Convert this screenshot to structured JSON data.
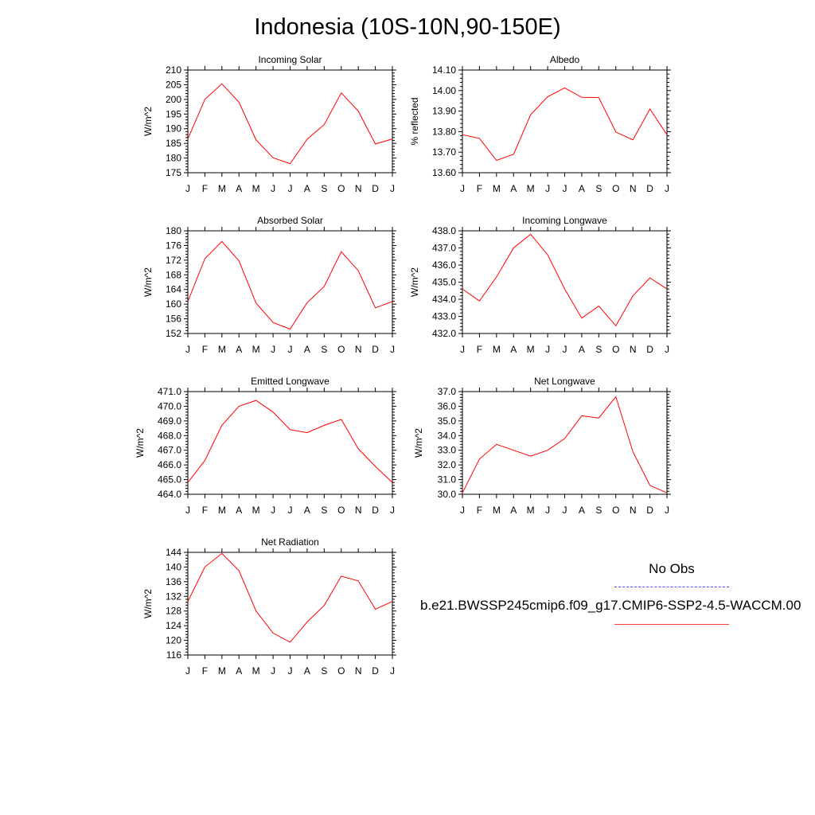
{
  "title": "Indonesia (10S-10N,90-150E)",
  "colors": {
    "series": "#ff0000",
    "obs": "#4a4aff",
    "axis": "#000000"
  },
  "months": [
    "J",
    "F",
    "M",
    "A",
    "M",
    "J",
    "J",
    "A",
    "S",
    "O",
    "N",
    "D",
    "J"
  ],
  "legend": {
    "obs_label": "No Obs",
    "case_label": "b.e21.BWSSP245cmip6.f09_g17.CMIP6-SSP2-4.5-WACCM.00"
  },
  "chart_data": [
    {
      "type": "line",
      "title": "Incoming Solar",
      "ylabel": "W/m^2",
      "ylim": [
        175,
        210
      ],
      "yticks": [
        175,
        180,
        185,
        190,
        195,
        200,
        205,
        210
      ],
      "ytick_labels": [
        "175",
        "180",
        "185",
        "190",
        "195",
        "200",
        "205",
        "210"
      ],
      "series": [
        {
          "name": "model",
          "values": [
            186.5,
            200,
            205.3,
            199,
            186.2,
            180.1,
            178.1,
            186.4,
            191.4,
            202.2,
            196,
            184.8,
            186.5
          ]
        }
      ]
    },
    {
      "type": "line",
      "title": "Albedo",
      "ylabel": "% reflected",
      "ylim": [
        13.6,
        14.1
      ],
      "yticks": [
        13.6,
        13.7,
        13.8,
        13.9,
        14.0,
        14.1
      ],
      "ytick_labels": [
        "13.60",
        "13.70",
        "13.80",
        "13.90",
        "14.00",
        "14.10"
      ],
      "series": [
        {
          "name": "model",
          "values": [
            13.785,
            13.767,
            13.66,
            13.69,
            13.882,
            13.97,
            14.013,
            13.967,
            13.966,
            13.798,
            13.76,
            13.91,
            13.785
          ]
        }
      ]
    },
    {
      "type": "line",
      "title": "Absorbed Solar",
      "ylabel": "W/m^2",
      "ylim": [
        152,
        180
      ],
      "yticks": [
        152,
        156,
        160,
        164,
        168,
        172,
        176,
        180
      ],
      "ytick_labels": [
        "152",
        "156",
        "160",
        "164",
        "168",
        "172",
        "176",
        "180"
      ],
      "series": [
        {
          "name": "model",
          "values": [
            160.7,
            172.4,
            177.1,
            171.8,
            160.3,
            155,
            153.2,
            160.4,
            164.8,
            174.3,
            169.1,
            159,
            160.7
          ]
        }
      ]
    },
    {
      "type": "line",
      "title": "Incoming Longwave",
      "ylabel": "W/m^2",
      "ylim": [
        432,
        438
      ],
      "yticks": [
        432,
        433,
        434,
        435,
        436,
        437,
        438
      ],
      "ytick_labels": [
        "432.0",
        "433.0",
        "434.0",
        "435.0",
        "436.0",
        "437.0",
        "438.0"
      ],
      "series": [
        {
          "name": "model",
          "values": [
            434.6,
            433.9,
            435.3,
            437,
            437.8,
            436.6,
            434.6,
            432.9,
            433.6,
            432.45,
            434.2,
            435.25,
            434.6
          ]
        }
      ]
    },
    {
      "type": "line",
      "title": "Emitted Longwave",
      "ylabel": "W/m^2",
      "ylim": [
        464,
        471
      ],
      "yticks": [
        464,
        465,
        466,
        467,
        468,
        469,
        470,
        471
      ],
      "ytick_labels": [
        "464.0",
        "465.0",
        "466.0",
        "467.0",
        "468.0",
        "469.0",
        "470.0",
        "471.0"
      ],
      "series": [
        {
          "name": "model",
          "values": [
            464.8,
            466.3,
            468.7,
            470,
            470.4,
            469.6,
            468.4,
            468.2,
            468.7,
            469.1,
            467.1,
            465.9,
            464.8
          ]
        }
      ]
    },
    {
      "type": "line",
      "title": "Net Longwave",
      "ylabel": "W/m^2",
      "ylim": [
        30,
        37
      ],
      "yticks": [
        30,
        31,
        32,
        33,
        34,
        35,
        36,
        37
      ],
      "ytick_labels": [
        "30.0",
        "31.0",
        "32.0",
        "33.0",
        "34.0",
        "35.0",
        "36.0",
        "37.0"
      ],
      "series": [
        {
          "name": "model",
          "values": [
            30.1,
            32.4,
            33.4,
            33,
            32.6,
            33,
            33.8,
            35.35,
            35.2,
            36.65,
            32.9,
            30.6,
            30.1
          ]
        }
      ]
    },
    {
      "type": "line",
      "title": "Net Radiation",
      "ylabel": "W/m^2",
      "ylim": [
        116,
        144
      ],
      "yticks": [
        116,
        120,
        124,
        128,
        132,
        136,
        140,
        144
      ],
      "ytick_labels": [
        "116",
        "120",
        "124",
        "128",
        "132",
        "136",
        "140",
        "144"
      ],
      "series": [
        {
          "name": "model",
          "values": [
            130.6,
            140,
            143.7,
            139,
            128,
            122,
            119.5,
            125,
            129.5,
            137.5,
            136.2,
            128.5,
            130.6
          ]
        }
      ]
    }
  ]
}
